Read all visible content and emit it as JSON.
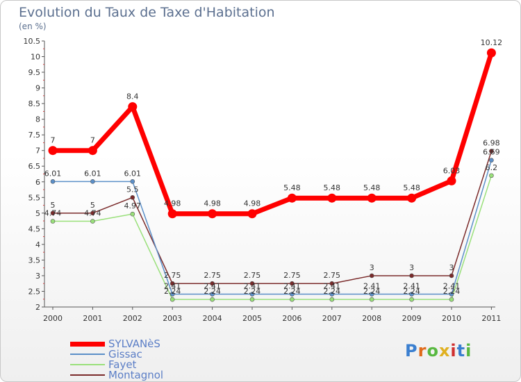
{
  "title": "Evolution du Taux de Taxe d'Habitation",
  "subtitle": "(en %)",
  "logo_text": "Proxiti",
  "chart_data": {
    "type": "line",
    "title": "Evolution du Taux de Taxe d'Habitation",
    "ylabel": "(en %)",
    "xlabel": "",
    "x": [
      "2000",
      "2001",
      "2002",
      "2003",
      "2004",
      "2005",
      "2006",
      "2007",
      "2008",
      "2009",
      "2010",
      "2011"
    ],
    "ylim": [
      2,
      10.5
    ],
    "yticks": [
      "2",
      "2.5",
      "3",
      "3.5",
      "4",
      "4.5",
      "5",
      "5.5",
      "6",
      "6.5",
      "7",
      "7.5",
      "8",
      "8.5",
      "9",
      "9.5",
      "10",
      "10.5"
    ],
    "grid": false,
    "legend_position": "bottom-left",
    "series": [
      {
        "name": "SYLVANèS",
        "color": "#ff0000",
        "values": [
          7,
          7,
          8.4,
          4.98,
          4.98,
          4.98,
          5.48,
          5.48,
          5.48,
          5.48,
          6.03,
          10.12
        ],
        "labels": [
          "7",
          "7",
          "8.4",
          "4.98",
          "4.98",
          "4.98",
          "5.48",
          "5.48",
          "5.48",
          "5.48",
          "6.03",
          "10.12"
        ]
      },
      {
        "name": "Gissac",
        "color": "#5b8fc8",
        "values": [
          6.01,
          6.01,
          6.01,
          2.41,
          2.41,
          2.41,
          2.41,
          2.41,
          2.41,
          2.41,
          2.41,
          6.69
        ],
        "labels": [
          "6.01",
          "6.01",
          "6.01",
          "2.41",
          "2.41",
          "2.41",
          "2.41",
          "2.41",
          "2.41",
          "2.41",
          "2.41",
          "6.69"
        ]
      },
      {
        "name": "Fayet",
        "color": "#99e07a",
        "values": [
          4.74,
          4.74,
          4.97,
          2.24,
          2.24,
          2.24,
          2.24,
          2.24,
          2.24,
          2.24,
          2.24,
          6.2
        ],
        "labels": [
          "4.74",
          "4.74",
          "4.97",
          "2.24",
          "2.24",
          "2.24",
          "2.24",
          "2.24",
          "2.24",
          "2.24",
          "2.24",
          "6.2"
        ]
      },
      {
        "name": "Montagnol",
        "color": "#7a2a2a",
        "values": [
          5,
          5,
          5.5,
          2.75,
          2.75,
          2.75,
          2.75,
          2.75,
          3,
          3,
          3,
          6.98
        ],
        "labels": [
          "5",
          "5",
          "5.5",
          "2.75",
          "2.75",
          "2.75",
          "2.75",
          "2.75",
          "3",
          "3",
          "3",
          "6.98"
        ]
      }
    ]
  }
}
